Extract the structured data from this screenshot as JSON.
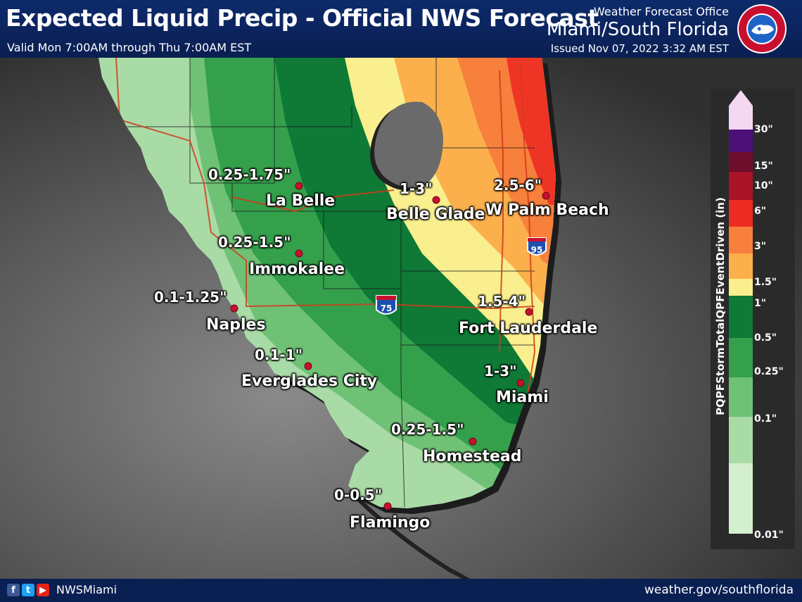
{
  "header": {
    "title": "Expected Liquid Precip - Official NWS Forecast",
    "valid": "Valid Mon 7:00AM through Thu 7:00AM EST",
    "office_label": "Weather Forecast Office",
    "office_name": "Miami/South Florida",
    "issued": "Issued Nov 07, 2022 3:32 AM EST",
    "logo_text": "NATIONAL WEATHER SERVICE"
  },
  "cities": [
    {
      "id": "la-belle",
      "amount": "0.25-1.75\"",
      "name": "La Belle"
    },
    {
      "id": "immokalee",
      "amount": "0.25-1.5\"",
      "name": "Immokalee"
    },
    {
      "id": "naples",
      "amount": "0.1-1.25\"",
      "name": "Naples"
    },
    {
      "id": "everglades-city",
      "amount": "0.1-1\"",
      "name": "Everglades City"
    },
    {
      "id": "flamingo",
      "amount": "0-0.5\"",
      "name": "Flamingo"
    },
    {
      "id": "homestead",
      "amount": "0.25-1.5\"",
      "name": "Homestead"
    },
    {
      "id": "miami",
      "amount": "1-3\"",
      "name": "Miami"
    },
    {
      "id": "fort-lauderdale",
      "amount": "1.5-4\"",
      "name": "Fort Lauderdale"
    },
    {
      "id": "belle-glade",
      "amount": "1-3\"",
      "name": "Belle Glade"
    },
    {
      "id": "w-palm-beach",
      "amount": "2.5-6\"",
      "name": "W Palm Beach"
    }
  ],
  "highways": [
    {
      "id": "i-75",
      "label": "75"
    },
    {
      "id": "i-95",
      "label": "95"
    }
  ],
  "legend": {
    "title": "PQPFStormTotalQPFEventDriven (in)",
    "ticks": [
      "30\"",
      "15\"",
      "10\"",
      "6\"",
      "3\"",
      "1.5\"",
      "1\"",
      "0.5\"",
      "0.25\"",
      "0.1\"",
      "0.01\""
    ],
    "colors": [
      "#f4d8f2",
      "#4b0f77",
      "#6e0d2b",
      "#a81326",
      "#ec2c22",
      "#f7803c",
      "#fbb04c",
      "#f9ef8e",
      "#0e7a36",
      "#35a04c",
      "#6fc176",
      "#a9dba6",
      "#d4efcf"
    ]
  },
  "footer": {
    "handle": "NWSMiami",
    "url": "weather.gov/southflorida",
    "social_icons": [
      "facebook-icon",
      "twitter-icon",
      "youtube-icon"
    ]
  }
}
